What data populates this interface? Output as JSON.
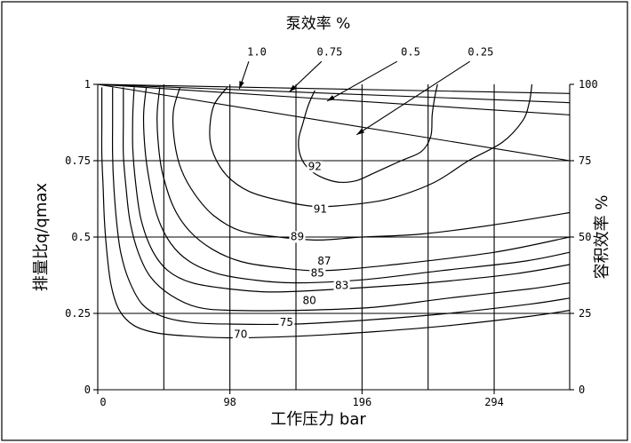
{
  "chart_data": {
    "type": "line",
    "title": "泵效率 %",
    "xlabel": "工作压力 bar",
    "ylabel": "排量比q/qmax",
    "y2label": "容积效率 %",
    "xlim": [
      0,
      350
    ],
    "ylim": [
      0,
      1
    ],
    "x_ticks": [
      "0",
      "98",
      "196",
      "294"
    ],
    "x_tick_values": [
      0,
      98,
      196,
      294
    ],
    "y_ticks": [
      "0",
      "0.25",
      "0.5",
      "0.75",
      "1"
    ],
    "y_tick_values": [
      0,
      0.25,
      0.5,
      0.75,
      1
    ],
    "y2_ticks": [
      "0",
      "25",
      "50",
      "75",
      "100"
    ],
    "y2_tick_values": [
      0,
      0.25,
      0.5,
      0.75,
      1
    ],
    "grid_x": [
      49,
      98,
      147,
      196,
      245,
      294
    ],
    "grid_y": [
      0.25,
      0.5,
      0.75
    ],
    "efficiency_contours": [
      {
        "label": "92",
        "label_at": [
          161,
          0.72
        ],
        "points": [
          [
            161,
            0.98
          ],
          [
            156,
            0.93
          ],
          [
            152,
            0.87
          ],
          [
            149,
            0.82
          ],
          [
            150,
            0.77
          ],
          [
            155,
            0.73
          ],
          [
            164,
            0.7
          ],
          [
            178,
            0.68
          ],
          [
            192,
            0.685
          ],
          [
            205,
            0.71
          ],
          [
            225,
            0.75
          ],
          [
            240,
            0.78
          ],
          [
            247,
            0.83
          ],
          [
            248,
            0.9
          ],
          [
            250,
            0.96
          ],
          [
            252,
            1.0
          ]
        ]
      },
      {
        "label": "91",
        "label_at": [
          165,
          0.58
        ],
        "points": [
          [
            96,
            0.99
          ],
          [
            86,
            0.93
          ],
          [
            83,
            0.84
          ],
          [
            86,
            0.77
          ],
          [
            96,
            0.7
          ],
          [
            112,
            0.65
          ],
          [
            135,
            0.62
          ],
          [
            163,
            0.6
          ],
          [
            196,
            0.61
          ],
          [
            220,
            0.63
          ],
          [
            250,
            0.68
          ],
          [
            275,
            0.75
          ],
          [
            300,
            0.81
          ],
          [
            315,
            0.88
          ],
          [
            320,
            0.94
          ],
          [
            322,
            1.0
          ]
        ]
      },
      {
        "label": "89",
        "label_at": [
          148,
          0.49
        ],
        "points": [
          [
            61,
            0.99
          ],
          [
            56,
            0.91
          ],
          [
            57,
            0.81
          ],
          [
            62,
            0.72
          ],
          [
            72,
            0.64
          ],
          [
            86,
            0.57
          ],
          [
            106,
            0.52
          ],
          [
            134,
            0.5
          ],
          [
            163,
            0.49
          ],
          [
            196,
            0.5
          ],
          [
            240,
            0.51
          ],
          [
            294,
            0.54
          ],
          [
            350,
            0.58
          ]
        ]
      },
      {
        "label": "87",
        "label_at": [
          168,
          0.41
        ],
        "points": [
          [
            46,
            0.99
          ],
          [
            44,
            0.9
          ],
          [
            45,
            0.8
          ],
          [
            48,
            0.71
          ],
          [
            56,
            0.6
          ],
          [
            68,
            0.52
          ],
          [
            85,
            0.46
          ],
          [
            106,
            0.42
          ],
          [
            134,
            0.4
          ],
          [
            168,
            0.39
          ],
          [
            220,
            0.41
          ],
          [
            294,
            0.45
          ],
          [
            350,
            0.5
          ]
        ]
      },
      {
        "label": "85",
        "label_at": [
          163,
          0.37
        ],
        "points": [
          [
            36,
            0.99
          ],
          [
            34,
            0.9
          ],
          [
            35,
            0.79
          ],
          [
            38,
            0.69
          ],
          [
            44,
            0.57
          ],
          [
            54,
            0.48
          ],
          [
            68,
            0.42
          ],
          [
            89,
            0.38
          ],
          [
            115,
            0.36
          ],
          [
            147,
            0.35
          ],
          [
            196,
            0.36
          ],
          [
            255,
            0.39
          ],
          [
            315,
            0.42
          ],
          [
            350,
            0.45
          ]
        ]
      },
      {
        "label": "83",
        "label_at": [
          181,
          0.33
        ],
        "points": [
          [
            27,
            0.99
          ],
          [
            26,
            0.9
          ],
          [
            26,
            0.79
          ],
          [
            28,
            0.68
          ],
          [
            32,
            0.56
          ],
          [
            40,
            0.46
          ],
          [
            52,
            0.39
          ],
          [
            70,
            0.35
          ],
          [
            98,
            0.33
          ],
          [
            130,
            0.32
          ],
          [
            180,
            0.33
          ],
          [
            245,
            0.35
          ],
          [
            310,
            0.38
          ],
          [
            350,
            0.41
          ]
        ]
      },
      {
        "label": "80",
        "label_at": [
          157,
          0.28
        ],
        "points": [
          [
            19,
            0.99
          ],
          [
            19,
            0.88
          ],
          [
            19,
            0.77
          ],
          [
            21,
            0.66
          ],
          [
            24,
            0.55
          ],
          [
            30,
            0.45
          ],
          [
            39,
            0.37
          ],
          [
            54,
            0.31
          ],
          [
            74,
            0.27
          ],
          [
            100,
            0.26
          ],
          [
            147,
            0.26
          ],
          [
            205,
            0.27
          ],
          [
            260,
            0.3
          ],
          [
            320,
            0.33
          ],
          [
            350,
            0.35
          ]
        ]
      },
      {
        "label": "75",
        "label_at": [
          140,
          0.21
        ],
        "points": [
          [
            11,
            0.99
          ],
          [
            11,
            0.88
          ],
          [
            11,
            0.77
          ],
          [
            12,
            0.66
          ],
          [
            14,
            0.55
          ],
          [
            17,
            0.45
          ],
          [
            23,
            0.36
          ],
          [
            33,
            0.28
          ],
          [
            48,
            0.24
          ],
          [
            70,
            0.22
          ],
          [
            98,
            0.215
          ],
          [
            147,
            0.215
          ],
          [
            205,
            0.23
          ],
          [
            260,
            0.25
          ],
          [
            320,
            0.28
          ],
          [
            350,
            0.3
          ]
        ]
      },
      {
        "label": "70",
        "label_at": [
          106,
          0.17
        ],
        "points": [
          [
            3,
            0.99
          ],
          [
            3,
            0.88
          ],
          [
            3,
            0.77
          ],
          [
            4,
            0.66
          ],
          [
            5,
            0.55
          ],
          [
            7,
            0.44
          ],
          [
            10,
            0.34
          ],
          [
            16,
            0.26
          ],
          [
            27,
            0.21
          ],
          [
            45,
            0.185
          ],
          [
            70,
            0.175
          ],
          [
            98,
            0.17
          ],
          [
            147,
            0.175
          ],
          [
            205,
            0.19
          ],
          [
            260,
            0.21
          ],
          [
            320,
            0.24
          ],
          [
            350,
            0.26
          ]
        ]
      }
    ],
    "volumetric_lines": [
      {
        "label": "1.0",
        "points": [
          [
            0,
            1.0
          ],
          [
            350,
            0.97
          ]
        ]
      },
      {
        "label": "0.75",
        "points": [
          [
            0,
            1.0
          ],
          [
            350,
            0.94
          ]
        ]
      },
      {
        "label": "0.5",
        "points": [
          [
            0,
            1.0
          ],
          [
            350,
            0.9
          ]
        ]
      },
      {
        "label": "0.25",
        "points": [
          [
            0,
            1.0
          ],
          [
            350,
            0.75
          ]
        ]
      }
    ],
    "volumetric_labels": [
      "1.0",
      "0.75",
      "0.5",
      "0.25"
    ]
  }
}
